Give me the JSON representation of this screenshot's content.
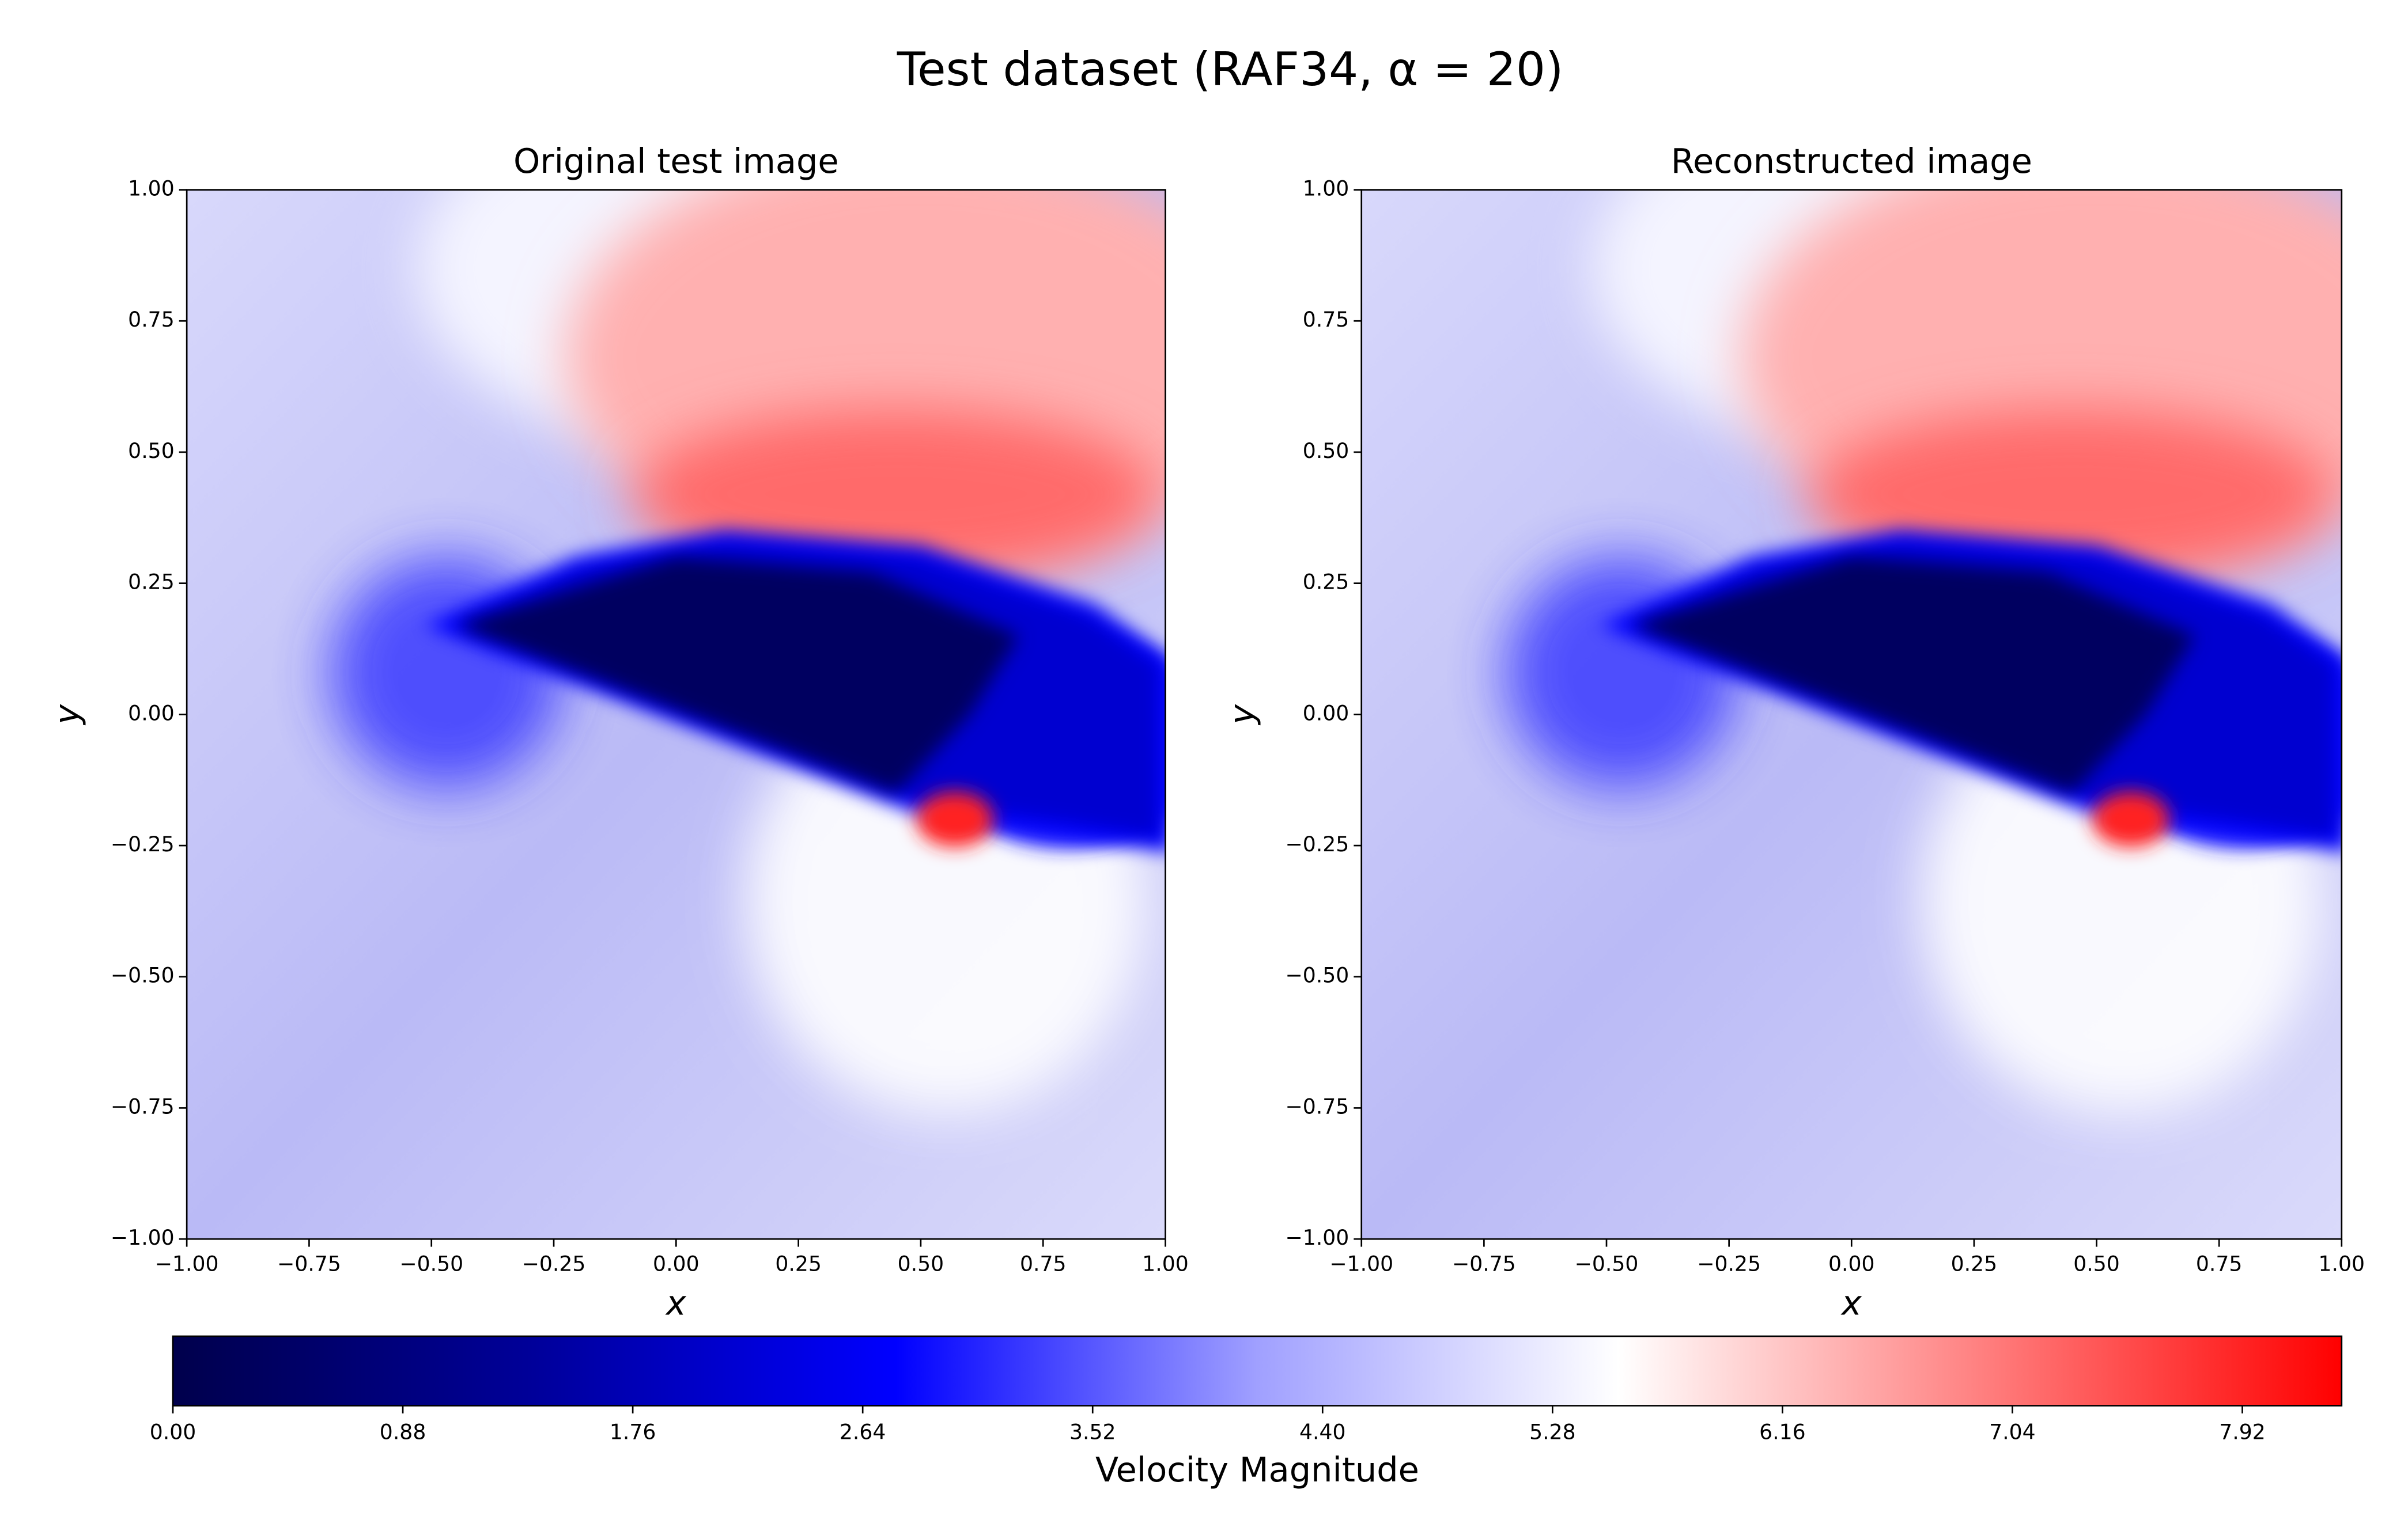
{
  "title": "Test dataset (RAF34, α = 20)",
  "chart_data": [
    {
      "type": "contourf",
      "title": "Original test image",
      "xlabel": "x",
      "ylabel": "y",
      "xlim": [
        -1,
        1
      ],
      "ylim": [
        -1,
        1
      ],
      "xticks": [
        {
          "value": -1,
          "label": "−1.00"
        },
        {
          "value": -0.75,
          "label": "−0.75"
        },
        {
          "value": -0.5,
          "label": "−0.50"
        },
        {
          "value": -0.25,
          "label": "−0.25"
        },
        {
          "value": 0,
          "label": "0.00"
        },
        0.25,
        {
          "value": 0.5,
          "label": "0.50"
        },
        0.75,
        {
          "value": 1,
          "label": "1.00"
        }
      ],
      "yticks": [
        {
          "value": -1,
          "label": "−1.00"
        },
        {
          "value": -0.75,
          "label": "−0.75"
        },
        {
          "value": -0.5,
          "label": "−0.50"
        },
        {
          "value": -0.25,
          "label": "−0.25"
        },
        {
          "value": 0,
          "label": "0.00"
        },
        0.25,
        {
          "value": 0.5,
          "label": "0.50"
        },
        0.75,
        {
          "value": 1,
          "label": "1.00"
        }
      ]
    },
    {
      "type": "contourf",
      "title": "Reconstructed image",
      "xlabel": "x",
      "ylabel": "y",
      "xlim": [
        -1,
        1
      ],
      "ylim": [
        -1,
        1
      ],
      "xticks": [
        {
          "value": -1,
          "label": "−1.00"
        },
        {
          "value": -0.75,
          "label": "−0.75"
        },
        {
          "value": -0.5,
          "label": "−0.50"
        },
        {
          "value": -0.25,
          "label": "−0.25"
        },
        {
          "value": 0,
          "label": "0.00"
        },
        0.25,
        {
          "value": 0.5,
          "label": "0.50"
        },
        0.75,
        {
          "value": 1,
          "label": "1.00"
        }
      ],
      "yticks": [
        {
          "value": -1,
          "label": "−1.00"
        },
        {
          "value": -0.75,
          "label": "−0.75"
        },
        {
          "value": -0.5,
          "label": "−0.50"
        },
        {
          "value": -0.25,
          "label": "−0.25"
        },
        {
          "value": 0,
          "label": "0.00"
        },
        0.25,
        {
          "value": 0.5,
          "label": "0.50"
        },
        0.75,
        {
          "value": 1,
          "label": "1.00"
        }
      ]
    }
  ],
  "colorbar": {
    "label": "Velocity Magnitude",
    "clim": [
      0,
      8.3
    ],
    "colormap": [
      "#00004c",
      "#00009a",
      "#0000ff",
      "#a0a0ff",
      "#ffffff",
      "#ff8080",
      "#ff0000"
    ],
    "ticks": [
      {
        "value": 0,
        "label": "0.00"
      },
      0.88,
      1.76,
      2.64,
      3.52,
      {
        "value": 4.4,
        "label": "4.40"
      },
      5.28,
      6.16,
      7.04,
      7.92
    ]
  }
}
